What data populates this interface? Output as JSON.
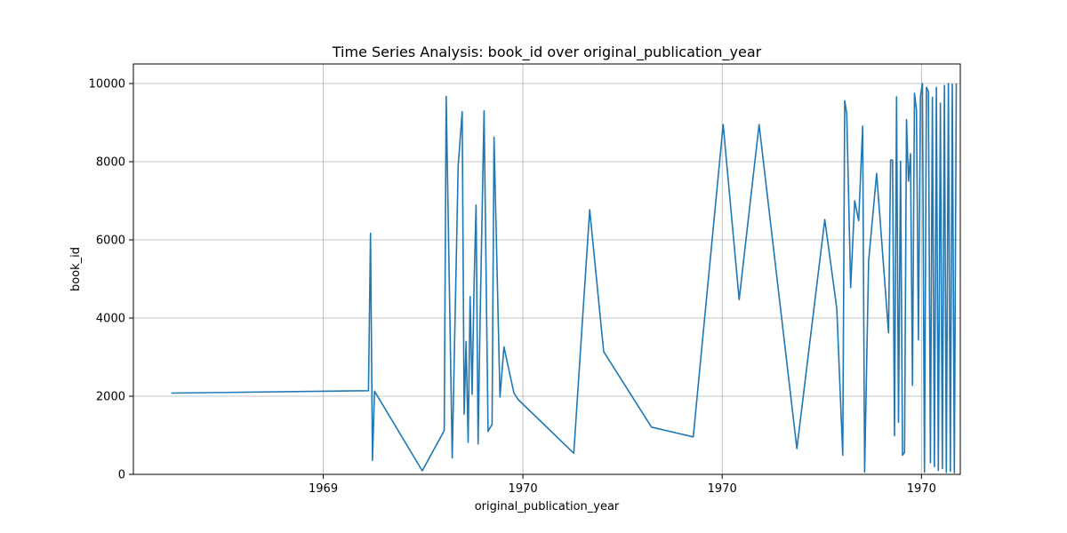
{
  "chart_data": {
    "type": "line",
    "title": "Time Series Analysis: book_id over original_publication_year",
    "xlabel": "original_publication_year",
    "ylabel": "book_id",
    "x_ticks": [
      {
        "value": 0.953,
        "label": "1969"
      },
      {
        "value": 1.955,
        "label": "1970"
      },
      {
        "value": 2.955,
        "label": "1970"
      },
      {
        "value": 3.955,
        "label": "1970"
      }
    ],
    "xlim": [
      0.0,
      4.15
    ],
    "ylim": [
      0,
      10500
    ],
    "y_ticks": [
      0,
      2000,
      4000,
      6000,
      8000,
      10000
    ],
    "grid": true,
    "color": "#1f77b4",
    "series": [
      {
        "x": [
          0.19,
          1.18,
          1.19,
          1.2,
          1.21,
          1.45,
          1.56,
          1.57,
          1.6,
          1.63,
          1.65,
          1.66,
          1.67,
          1.68,
          1.69,
          1.7,
          1.71,
          1.72,
          1.73,
          1.74,
          1.76,
          1.78,
          1.8,
          1.81,
          1.84,
          1.86,
          1.91,
          1.93,
          2.21,
          2.29,
          2.36,
          2.6,
          2.81,
          2.96,
          3.04,
          3.14,
          3.33,
          3.47,
          3.53,
          3.56,
          3.57,
          3.58,
          3.6,
          3.62,
          3.64,
          3.66,
          3.67,
          3.69,
          3.73,
          3.79,
          3.8,
          3.81,
          3.82,
          3.83,
          3.84,
          3.85,
          3.86,
          3.87,
          3.88,
          3.89,
          3.9,
          3.91,
          3.92,
          3.93,
          3.94,
          3.95,
          3.96,
          3.97,
          3.98,
          3.99,
          4.0,
          4.01,
          4.02,
          4.03,
          4.04,
          4.05,
          4.06,
          4.07,
          4.08,
          4.09,
          4.1,
          4.11,
          4.12,
          4.13
        ],
        "y": [
          2080,
          2140,
          6170,
          360,
          2130,
          90,
          1120,
          9670,
          420,
          7900,
          9280,
          1540,
          3400,
          820,
          4550,
          2050,
          4880,
          6890,
          780,
          3900,
          9300,
          1100,
          1280,
          8630,
          1980,
          3260,
          2080,
          1920,
          540,
          6770,
          3140,
          1210,
          960,
          8950,
          4470,
          8950,
          660,
          6520,
          4240,
          490,
          9560,
          9230,
          4780,
          7000,
          6490,
          8910,
          60,
          5460,
          7700,
          3620,
          8040,
          8040,
          990,
          9660,
          1330,
          8010,
          490,
          560,
          9080,
          7500,
          8200,
          2280,
          9750,
          9320,
          3440,
          9680,
          10000,
          60,
          9900,
          9800,
          300,
          9650,
          200,
          9900,
          100,
          9500,
          150,
          9950,
          50,
          10000,
          80,
          9980,
          40,
          10000
        ]
      }
    ]
  }
}
